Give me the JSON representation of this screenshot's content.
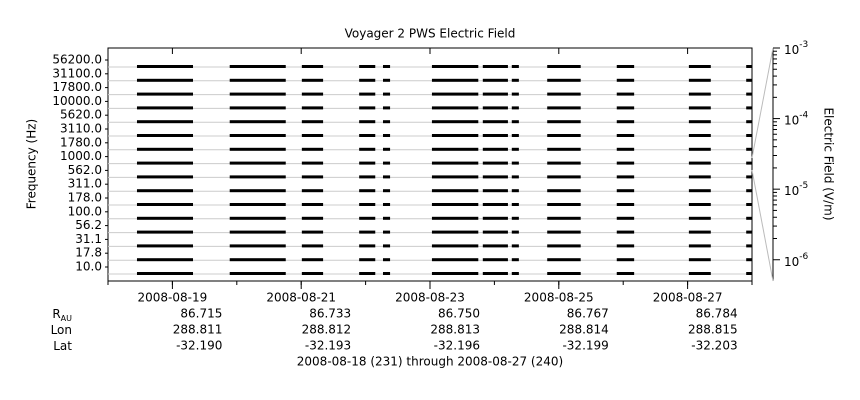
{
  "chart_data": {
    "type": "stackplot",
    "title": "Voyager 2 PWS Electric Field",
    "y_label": "Frequency (Hz)",
    "y2_label": "Electric Field (V/m)",
    "categories": [
      "10.0",
      "17.8",
      "31.1",
      "56.2",
      "100.0",
      "178.0",
      "311.0",
      "562.0",
      "1000.0",
      "1780.0",
      "3110.0",
      "5620.0",
      "10000.0",
      "17800.0",
      "31100.0",
      "56200.0"
    ],
    "xlim": [
      231,
      241
    ],
    "xticks": [
      {
        "value": 232,
        "label": "2008-08-19"
      },
      {
        "value": 234,
        "label": "2008-08-21"
      },
      {
        "value": 236,
        "label": "2008-08-23"
      },
      {
        "value": 238,
        "label": "2008-08-25"
      },
      {
        "value": 240,
        "label": "2008-08-27"
      }
    ],
    "y2lim": [
      5e-07,
      0.001
    ],
    "y2ticks": [
      {
        "value": 0.001,
        "label": "10",
        "exponent": "-3"
      },
      {
        "value": 0.0001,
        "label": "10",
        "exponent": "-4"
      },
      {
        "value": 1e-05,
        "label": "10",
        "exponent": "-5"
      },
      {
        "value": 1e-06,
        "label": "10",
        "exponent": "-6"
      }
    ],
    "y2_log": true,
    "color": "#000000",
    "segments": [
      [
        231.45,
        232.32
      ],
      [
        232.89,
        233.76
      ],
      [
        234.01,
        234.34
      ],
      [
        234.9,
        235.15
      ],
      [
        235.27,
        235.38
      ],
      [
        236.03,
        236.75
      ],
      [
        236.82,
        237.21
      ],
      [
        237.27,
        237.38
      ],
      [
        237.82,
        238.34
      ],
      [
        238.9,
        239.17
      ],
      [
        240.02,
        240.36
      ],
      [
        240.91,
        241.0
      ]
    ],
    "ephemeris": [
      {
        "label": "R",
        "subscript": "AU",
        "values": [
          "86.715",
          "86.733",
          "86.750",
          "86.767",
          "86.784"
        ]
      },
      {
        "label": "Lon",
        "values": [
          "288.811",
          "288.812",
          "288.813",
          "288.814",
          "288.815"
        ]
      },
      {
        "label": "Lat",
        "values": [
          "-32.190",
          "-32.193",
          "-32.196",
          "-32.199",
          "-32.203"
        ]
      }
    ],
    "footer": "2008-08-18 (231) through 2008-08-27 (240)"
  }
}
